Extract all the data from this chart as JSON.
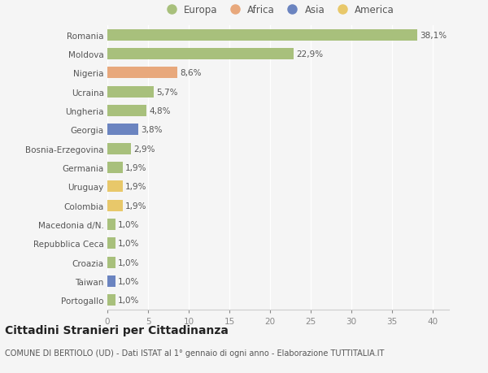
{
  "countries": [
    "Portogallo",
    "Taiwan",
    "Croazia",
    "Repubblica Ceca",
    "Macedonia d/N.",
    "Colombia",
    "Uruguay",
    "Germania",
    "Bosnia-Erzegovina",
    "Georgia",
    "Ungheria",
    "Ucraina",
    "Nigeria",
    "Moldova",
    "Romania"
  ],
  "values": [
    1.0,
    1.0,
    1.0,
    1.0,
    1.0,
    1.9,
    1.9,
    1.9,
    2.9,
    3.8,
    4.8,
    5.7,
    8.6,
    22.9,
    38.1
  ],
  "labels": [
    "1,0%",
    "1,0%",
    "1,0%",
    "1,0%",
    "1,0%",
    "1,9%",
    "1,9%",
    "1,9%",
    "2,9%",
    "3,8%",
    "4,8%",
    "5,7%",
    "8,6%",
    "22,9%",
    "38,1%"
  ],
  "colors": [
    "#a8c07c",
    "#6b84c0",
    "#a8c07c",
    "#a8c07c",
    "#a8c07c",
    "#e8c86a",
    "#e8c86a",
    "#a8c07c",
    "#a8c07c",
    "#6b84c0",
    "#a8c07c",
    "#a8c07c",
    "#e8a87c",
    "#a8c07c",
    "#a8c07c"
  ],
  "legend": [
    {
      "label": "Europa",
      "color": "#a8c07c"
    },
    {
      "label": "Africa",
      "color": "#e8a87c"
    },
    {
      "label": "Asia",
      "color": "#6b84c0"
    },
    {
      "label": "America",
      "color": "#e8c86a"
    }
  ],
  "xlim": [
    0,
    42
  ],
  "xticks": [
    0,
    5,
    10,
    15,
    20,
    25,
    30,
    35,
    40
  ],
  "title": "Cittadini Stranieri per Cittadinanza",
  "subtitle": "COMUNE DI BERTIOLO (UD) - Dati ISTAT al 1° gennaio di ogni anno - Elaborazione TUTTITALIA.IT",
  "bg_color": "#f5f5f5",
  "grid_color": "#ffffff",
  "bar_height": 0.6,
  "label_fontsize": 7.5,
  "tick_fontsize": 7.5,
  "title_fontsize": 10,
  "subtitle_fontsize": 7
}
